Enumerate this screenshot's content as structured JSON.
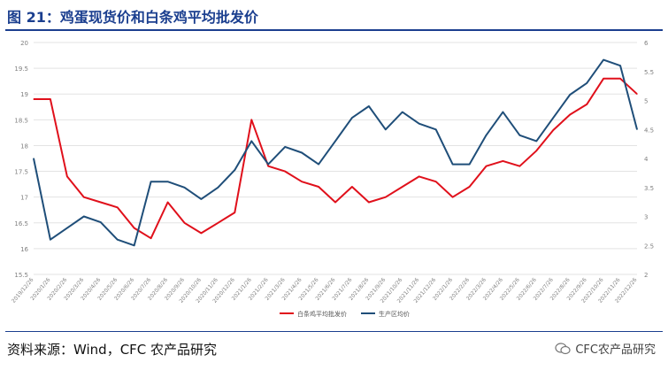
{
  "header": {
    "title": "图 21：鸡蛋现货价和白条鸡平均批发价"
  },
  "footer": {
    "source": "资料来源：Wind，CFC 农产品研究",
    "watermark": "CFC农产品研究"
  },
  "colors": {
    "title": "#1b3f8f",
    "series_red": "#e0101b",
    "series_blue": "#1f4e79",
    "grid": "#e3e3e3",
    "axis_text": "#7f7f7f"
  },
  "chart_data": {
    "type": "line",
    "title": "",
    "xlabel": "",
    "ylabel": "",
    "x_tick_labels": [
      "2019/12/26",
      "2020/1/26",
      "2020/2/26",
      "2020/3/26",
      "2020/4/26",
      "2020/5/26",
      "2020/6/26",
      "2020/7/26",
      "2020/8/26",
      "2020/9/26",
      "2020/10/26",
      "2020/11/26",
      "2020/12/26",
      "2021/1/26",
      "2021/2/26",
      "2021/3/26",
      "2021/4/26",
      "2021/5/26",
      "2021/6/26",
      "2021/7/26",
      "2021/8/26",
      "2021/9/26",
      "2021/10/26",
      "2021/11/26",
      "2021/12/26",
      "2022/1/26",
      "2022/2/26",
      "2022/3/26",
      "2022/4/26",
      "2022/5/26",
      "2022/6/26",
      "2022/7/26",
      "2022/8/26",
      "2022/9/26",
      "2022/10/26",
      "2022/11/26",
      "2022/12/26"
    ],
    "y_left": {
      "min": 15.5,
      "max": 20,
      "ticks": [
        "15.5",
        "16",
        "16.5",
        "17",
        "17.5",
        "18",
        "18.5",
        "19",
        "19.5",
        "20"
      ]
    },
    "y_right": {
      "min": 2,
      "max": 6,
      "ticks": [
        "2",
        "2.5",
        "3",
        "3.5",
        "4",
        "4.5",
        "5",
        "5.5",
        "6"
      ]
    },
    "grid": true,
    "legend_position": "bottom",
    "series": [
      {
        "name": "白条鸡平均批发价",
        "axis": "left",
        "color": "#e0101b",
        "values": [
          18.9,
          18.9,
          17.4,
          17.0,
          16.9,
          16.8,
          16.4,
          16.2,
          16.9,
          16.5,
          16.3,
          16.5,
          16.7,
          18.5,
          17.6,
          17.5,
          17.3,
          17.2,
          16.9,
          17.2,
          16.9,
          17.0,
          17.2,
          17.4,
          17.3,
          17.0,
          17.2,
          17.6,
          17.7,
          17.6,
          17.9,
          18.3,
          18.6,
          18.8,
          19.3,
          19.3,
          19.0
        ]
      },
      {
        "name": "生产区均价",
        "axis": "right",
        "color": "#1f4e79",
        "values": [
          4.0,
          2.6,
          2.8,
          3.0,
          2.9,
          2.6,
          2.5,
          3.6,
          3.6,
          3.5,
          3.3,
          3.5,
          3.8,
          4.3,
          3.9,
          4.2,
          4.1,
          3.9,
          4.3,
          4.7,
          4.9,
          4.5,
          4.8,
          4.6,
          4.5,
          3.9,
          3.9,
          4.4,
          4.8,
          4.4,
          4.3,
          4.7,
          5.1,
          5.3,
          5.7,
          5.6,
          4.5
        ]
      }
    ]
  }
}
